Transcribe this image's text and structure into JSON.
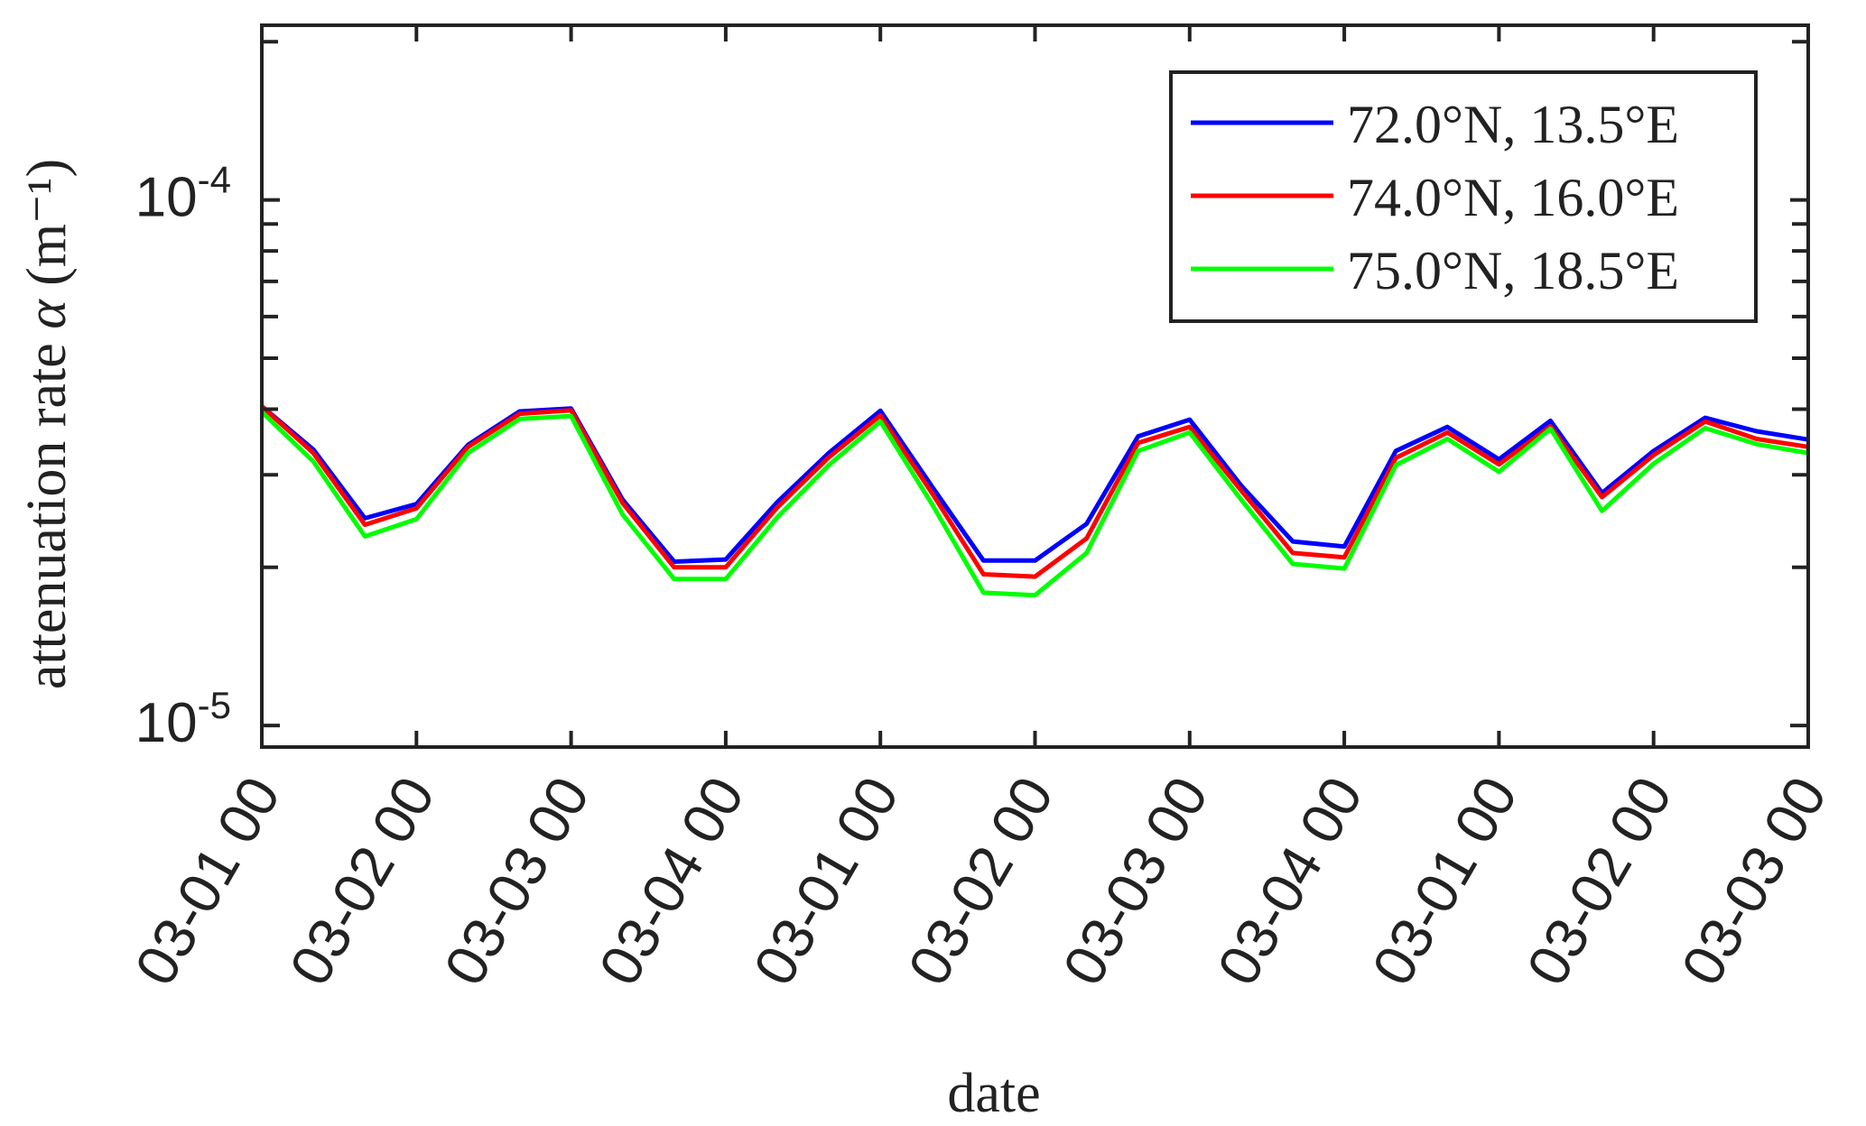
{
  "chart_data": {
    "type": "line",
    "xlabel": "date",
    "ylabel": "attenuation rate",
    "ylabel_symbol": "α",
    "ylabel_unit": "(m⁻¹)",
    "y_scale": "log",
    "ylim": [
      9.1e-06,
      0.000215
    ],
    "y_ticks": [
      {
        "value": 1e-05,
        "base": "10",
        "exp": "-5"
      },
      {
        "value": 0.0001,
        "base": "10",
        "exp": "-4"
      }
    ],
    "x_tick_labels": [
      "03-01 00",
      "03-02 00",
      "03-03 00",
      "03-04 00",
      "03-01 00",
      "03-02 00",
      "03-03 00",
      "03-04 00",
      "03-01 00",
      "03-02 00",
      "03-03 00"
    ],
    "x": [
      0,
      1,
      2,
      3,
      4,
      5,
      6,
      7,
      8,
      9,
      10,
      11,
      12,
      13,
      14,
      15,
      16,
      17,
      18,
      19,
      20,
      21,
      22,
      23,
      24,
      25,
      26,
      27,
      28,
      29,
      30
    ],
    "series": [
      {
        "name": "72.0°N, 13.5°E",
        "color": "#0000ff",
        "values": [
          4.05e-05,
          3.35e-05,
          2.48e-05,
          2.64e-05,
          3.42e-05,
          3.96e-05,
          4.01e-05,
          2.69e-05,
          2.05e-05,
          2.07e-05,
          2.66e-05,
          3.3e-05,
          3.97e-05,
          2.85e-05,
          2.06e-05,
          2.06e-05,
          2.42e-05,
          3.55e-05,
          3.82e-05,
          2.86e-05,
          2.24e-05,
          2.19e-05,
          3.33e-05,
          3.7e-05,
          3.21e-05,
          3.8e-05,
          2.77e-05,
          3.33e-05,
          3.85e-05,
          3.63e-05,
          3.5e-05
        ]
      },
      {
        "name": "74.0°N, 16.0°E",
        "color": "#ff0000",
        "values": [
          4.05e-05,
          3.3e-05,
          2.41e-05,
          2.59e-05,
          3.39e-05,
          3.92e-05,
          3.98e-05,
          2.65e-05,
          2e-05,
          2e-05,
          2.6e-05,
          3.24e-05,
          3.89e-05,
          2.77e-05,
          1.94e-05,
          1.92e-05,
          2.27e-05,
          3.45e-05,
          3.7e-05,
          2.8e-05,
          2.13e-05,
          2.09e-05,
          3.23e-05,
          3.61e-05,
          3.14e-05,
          3.71e-05,
          2.72e-05,
          3.27e-05,
          3.79e-05,
          3.51e-05,
          3.39e-05
        ]
      },
      {
        "name": "75.0°N, 18.5°E",
        "color": "#00ff00",
        "values": [
          3.95e-05,
          3.18e-05,
          2.29e-05,
          2.47e-05,
          3.3e-05,
          3.83e-05,
          3.88e-05,
          2.52e-05,
          1.9e-05,
          1.9e-05,
          2.49e-05,
          3.13e-05,
          3.79e-05,
          2.64e-05,
          1.79e-05,
          1.77e-05,
          2.13e-05,
          3.33e-05,
          3.61e-05,
          2.69e-05,
          2.03e-05,
          1.99e-05,
          3.13e-05,
          3.51e-05,
          3.04e-05,
          3.67e-05,
          2.56e-05,
          3.15e-05,
          3.68e-05,
          3.43e-05,
          3.3e-05
        ]
      }
    ],
    "legend_position": "top-right",
    "grid": false
  }
}
